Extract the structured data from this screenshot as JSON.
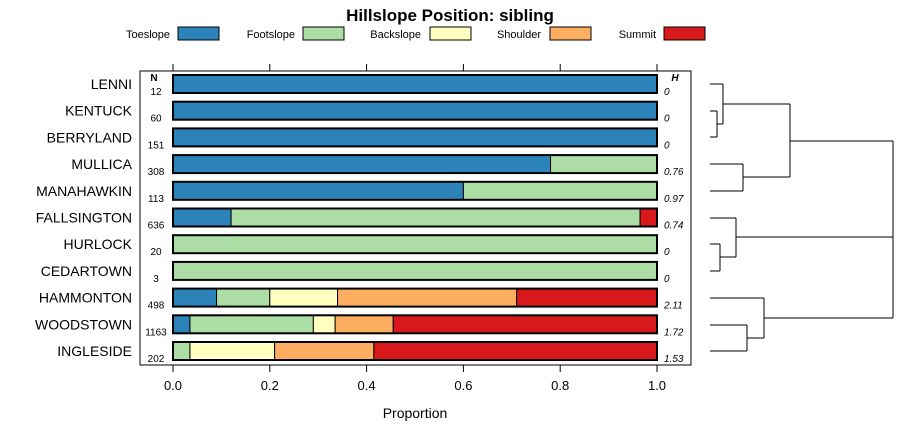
{
  "chart_data": {
    "type": "bar",
    "orientation": "horizontal-stacked",
    "title": "Hillslope Position: sibling",
    "xlabel": "Proportion",
    "ylabel": "",
    "xlim": [
      0,
      1
    ],
    "xticks": [
      "0.0",
      "0.2",
      "0.4",
      "0.6",
      "0.8",
      "1.0"
    ],
    "n_header": "N",
    "h_header": "H",
    "legend_position": "top",
    "series": [
      {
        "name": "Toeslope",
        "color": "#2b83ba"
      },
      {
        "name": "Footslope",
        "color": "#abdda4"
      },
      {
        "name": "Backslope",
        "color": "#ffffbf"
      },
      {
        "name": "Shoulder",
        "color": "#fdae61"
      },
      {
        "name": "Summit",
        "color": "#d7191c"
      }
    ],
    "rows": [
      {
        "name": "LENNI",
        "n": "12",
        "h": "0",
        "values": [
          1,
          0,
          0,
          0,
          0
        ]
      },
      {
        "name": "KENTUCK",
        "n": "60",
        "h": "0",
        "values": [
          1,
          0,
          0,
          0,
          0
        ]
      },
      {
        "name": "BERRYLAND",
        "n": "151",
        "h": "0",
        "values": [
          1,
          0,
          0,
          0,
          0
        ]
      },
      {
        "name": "MULLICA",
        "n": "308",
        "h": "0.76",
        "values": [
          0.78,
          0.22,
          0,
          0,
          0
        ]
      },
      {
        "name": "MANAHAWKIN",
        "n": "113",
        "h": "0.97",
        "values": [
          0.6,
          0.4,
          0,
          0,
          0
        ]
      },
      {
        "name": "FALLSINGTON",
        "n": "636",
        "h": "0.74",
        "values": [
          0.12,
          0.845,
          0,
          0,
          0.035
        ]
      },
      {
        "name": "HURLOCK",
        "n": "20",
        "h": "0",
        "values": [
          0,
          1,
          0,
          0,
          0
        ]
      },
      {
        "name": "CEDARTOWN",
        "n": "3",
        "h": "0",
        "values": [
          0,
          1,
          0,
          0,
          0
        ]
      },
      {
        "name": "HAMMONTON",
        "n": "498",
        "h": "2.11",
        "values": [
          0.09,
          0.11,
          0.14,
          0.37,
          0.29
        ]
      },
      {
        "name": "WOODSTOWN",
        "n": "1163",
        "h": "1.72",
        "values": [
          0.035,
          0.255,
          0.045,
          0.12,
          0.545
        ]
      },
      {
        "name": "INGLESIDE",
        "n": "202",
        "h": "1.53",
        "values": [
          0,
          0.035,
          0.175,
          0.205,
          0.585
        ]
      }
    ],
    "dendrogram": "hierarchical clustering of rows (unlabeled)"
  }
}
